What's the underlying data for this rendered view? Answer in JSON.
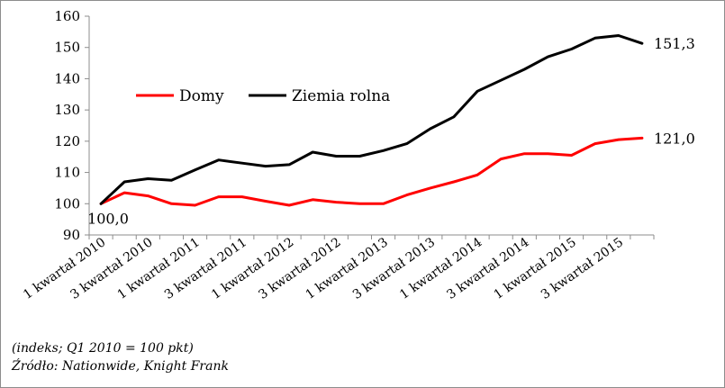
{
  "chart_data": {
    "type": "line",
    "categories": [
      "1 kwartał 2010",
      "2 kwartał 2010",
      "3 kwartał 2010",
      "4 kwartał 2010",
      "1 kwartał 2011",
      "2 kwartał 2011",
      "3 kwartał 2011",
      "4 kwartał 2011",
      "1 kwartał 2012",
      "2 kwartał 2012",
      "3 kwartał 2012",
      "4 kwartał 2012",
      "1 kwartał 2013",
      "2 kwartał 2013",
      "3 kwartał 2013",
      "4 kwartał 2013",
      "1 kwartał 2014",
      "2 kwartał 2014",
      "3 kwartał 2014",
      "4 kwartał 2014",
      "1 kwartał 2015",
      "2 kwartał 2015",
      "3 kwartał 2015",
      "4 kwartał 2015"
    ],
    "xtick_labels": [
      "1 kwartał 2010",
      "3 kwartał 2010",
      "1 kwartał 2011",
      "3 kwartał 2011",
      "1 kwartał 2012",
      "3 kwartał 2012",
      "1 kwartał 2013",
      "3 kwartał 2013",
      "1 kwartał 2014",
      "3 kwartał 2014",
      "1 kwartał 2015",
      "3 kwartał 2015"
    ],
    "series": [
      {
        "name": "Domy",
        "color": "#ff0000",
        "values": [
          100.0,
          103.5,
          102.5,
          100.0,
          99.5,
          102.2,
          102.2,
          100.8,
          99.5,
          101.3,
          100.5,
          100.0,
          100.0,
          102.8,
          105.0,
          107.0,
          109.2,
          114.3,
          116.0,
          116.0,
          115.5,
          119.2,
          120.5,
          121.0
        ]
      },
      {
        "name": "Ziemia rolna",
        "color": "#000000",
        "values": [
          100.0,
          107.0,
          108.0,
          107.5,
          110.8,
          114.0,
          113.0,
          112.0,
          112.5,
          116.5,
          115.2,
          115.2,
          117.0,
          119.2,
          124.0,
          127.8,
          136.0,
          139.5,
          143.0,
          147.0,
          149.5,
          153.0,
          153.8,
          151.3
        ]
      }
    ],
    "annotations": [
      {
        "text": "100,0",
        "series": 0,
        "index": 0
      },
      {
        "text": "121,0",
        "series": 0,
        "index": 23
      },
      {
        "text": "151,3",
        "series": 1,
        "index": 23
      }
    ],
    "ylim": [
      90,
      160
    ],
    "yticks": [
      "90",
      "100",
      "110",
      "120",
      "130",
      "140",
      "150",
      "160"
    ],
    "grid": false,
    "legend": "upper-left"
  },
  "notes": {
    "unit": "(indeks; Q1 2010 = 100 pkt)",
    "source": "Źródło: Nationwide, Knight Frank"
  }
}
